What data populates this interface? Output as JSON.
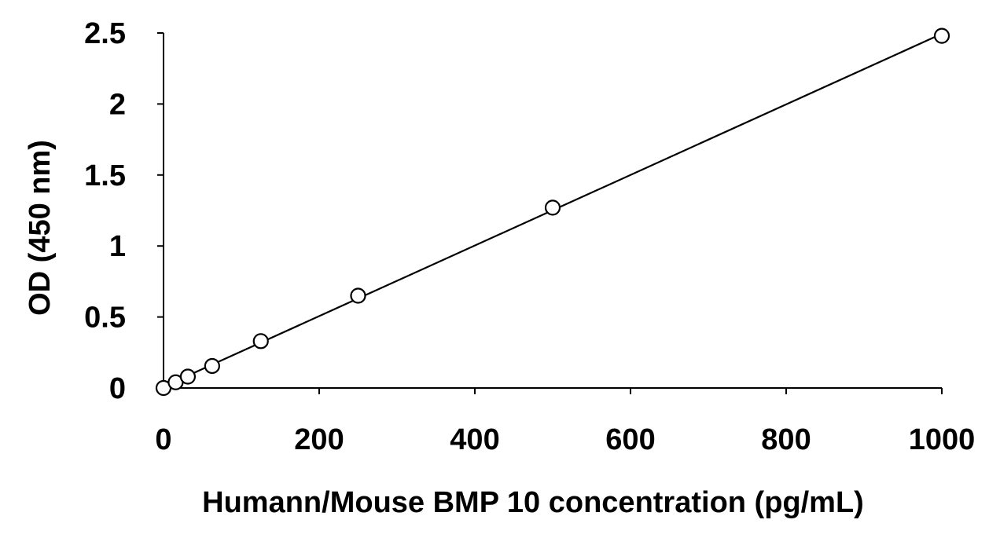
{
  "chart_data": {
    "type": "scatter",
    "title": "",
    "xlabel": "Humann/Mouse BMP 10 concentration (pg/mL)",
    "ylabel": "OD (450 nm)",
    "xlim": [
      0,
      1000
    ],
    "ylim": [
      0,
      2.5
    ],
    "xticks": [
      0,
      200,
      400,
      600,
      800,
      1000
    ],
    "yticks": [
      0,
      0.5,
      1,
      1.5,
      2,
      2.5
    ],
    "xtick_labels": [
      "0",
      "200",
      "400",
      "600",
      "800",
      "1000"
    ],
    "ytick_labels": [
      "0",
      "0.5",
      "1",
      "1.5",
      "2",
      "2.5"
    ],
    "grid": false,
    "legend": "none",
    "series": [
      {
        "marker": "open-circle",
        "line": "linear-fit",
        "x": [
          0,
          15.6,
          31.25,
          62.5,
          125,
          250,
          500,
          1000
        ],
        "y": [
          0.0,
          0.04,
          0.08,
          0.155,
          0.33,
          0.65,
          1.27,
          2.48
        ]
      }
    ]
  }
}
